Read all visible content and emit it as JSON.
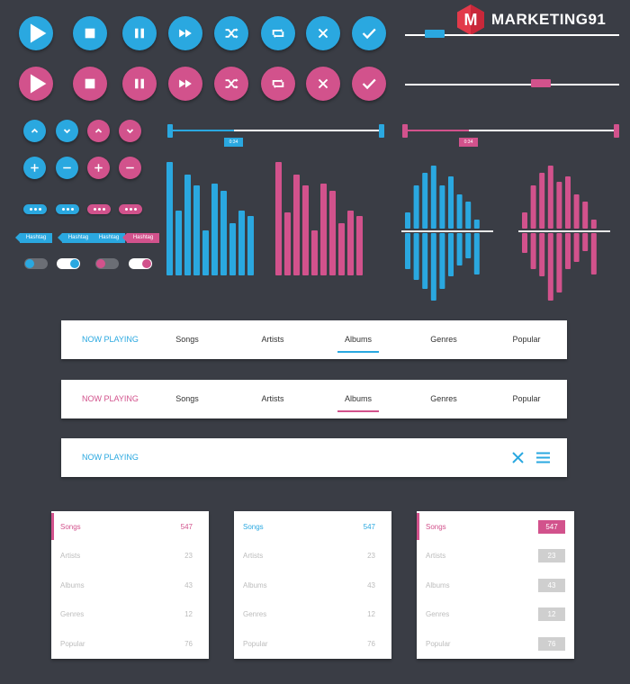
{
  "brand": {
    "letter": "M",
    "name": "MARKETING91"
  },
  "colors": {
    "blue": "#2aa8e0",
    "pink": "#d2528c",
    "background": "#3a3d45"
  },
  "media_controls": [
    "play-icon",
    "stop-icon",
    "pause-icon",
    "fast-forward-icon",
    "shuffle-icon",
    "repeat-icon",
    "close-icon",
    "check-icon"
  ],
  "small_controls": [
    "chevron-up-icon",
    "chevron-down-icon",
    "plus-icon",
    "minus-icon"
  ],
  "tags": [
    "Hashtag",
    "Hashtag",
    "Hashtag",
    "Hashtag"
  ],
  "sliders": {
    "blue_time": "0:34",
    "pink_time": "0:34",
    "top_blue_level": 0.12,
    "top_pink_level": 0.6,
    "blue_progress": 0.31,
    "pink_progress": 0.31
  },
  "toggles": [
    false,
    true,
    false,
    true
  ],
  "tabbar_blue": {
    "now_playing": "NOW PLAYING",
    "tabs": [
      "Songs",
      "Artists",
      "Albums",
      "Genres",
      "Popular"
    ],
    "active": "Albums"
  },
  "tabbar_pink": {
    "now_playing": "NOW PLAYING",
    "tabs": [
      "Songs",
      "Artists",
      "Albums",
      "Genres",
      "Popular"
    ],
    "active": "Albums"
  },
  "tabbar_compact": {
    "now_playing": "NOW PLAYING"
  },
  "lists": [
    {
      "style": "pink-marker",
      "items": [
        {
          "label": "Songs",
          "count": "547"
        },
        {
          "label": "Artists",
          "count": "23"
        },
        {
          "label": "Albums",
          "count": "43"
        },
        {
          "label": "Genres",
          "count": "12"
        },
        {
          "label": "Popular",
          "count": "76"
        }
      ]
    },
    {
      "style": "blue-text",
      "items": [
        {
          "label": "Songs",
          "count": "547"
        },
        {
          "label": "Artists",
          "count": "23"
        },
        {
          "label": "Albums",
          "count": "43"
        },
        {
          "label": "Genres",
          "count": "12"
        },
        {
          "label": "Popular",
          "count": "76"
        }
      ]
    },
    {
      "style": "badges",
      "items": [
        {
          "label": "Songs",
          "count": "547"
        },
        {
          "label": "Artists",
          "count": "23"
        },
        {
          "label": "Albums",
          "count": "43"
        },
        {
          "label": "Genres",
          "count": "12"
        },
        {
          "label": "Popular",
          "count": "76"
        }
      ]
    }
  ]
}
